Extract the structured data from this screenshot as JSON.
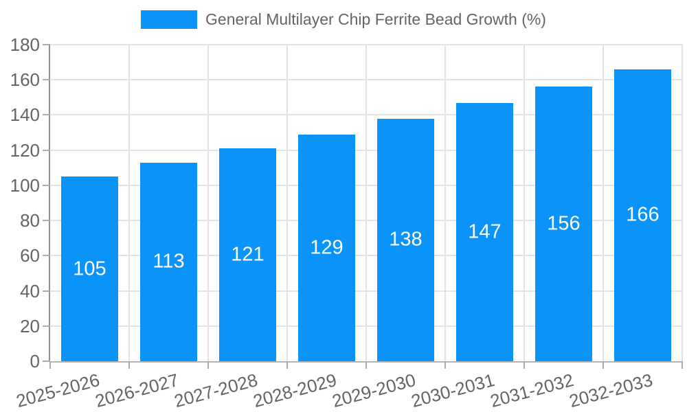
{
  "legend": {
    "label": "General Multilayer Chip Ferrite Bead Growth (%)"
  },
  "chart_data": {
    "type": "bar",
    "title": "",
    "categories": [
      "2025-2026",
      "2026-2027",
      "2027-2028",
      "2028-2029",
      "2029-2030",
      "2030-2031",
      "2031-2032",
      "2032-2033"
    ],
    "series": [
      {
        "name": "General Multilayer Chip Ferrite Bead Growth (%)",
        "values": [
          105,
          113,
          121,
          129,
          138,
          147,
          156,
          166
        ]
      }
    ],
    "value_labels": [
      "105",
      "113",
      "121",
      "129",
      "138",
      "147",
      "156",
      "166"
    ],
    "yticks": [
      0,
      20,
      40,
      60,
      80,
      100,
      120,
      140,
      160,
      180
    ],
    "ylim": [
      0,
      180
    ],
    "ytick_step": 20,
    "grid": true,
    "legend_position": "top-center",
    "x_label_rotation_deg": -15,
    "colors": {
      "bar": "#0A93F8",
      "value_label": "#FFFFFF",
      "grid_line": "#E3E3E3",
      "y_axis_line": "#8F8F8F",
      "x_axis_line": "#B3B3B3",
      "tick_mark": "#ACACAC",
      "text": "#646464",
      "background": "#FFFFFF"
    }
  }
}
